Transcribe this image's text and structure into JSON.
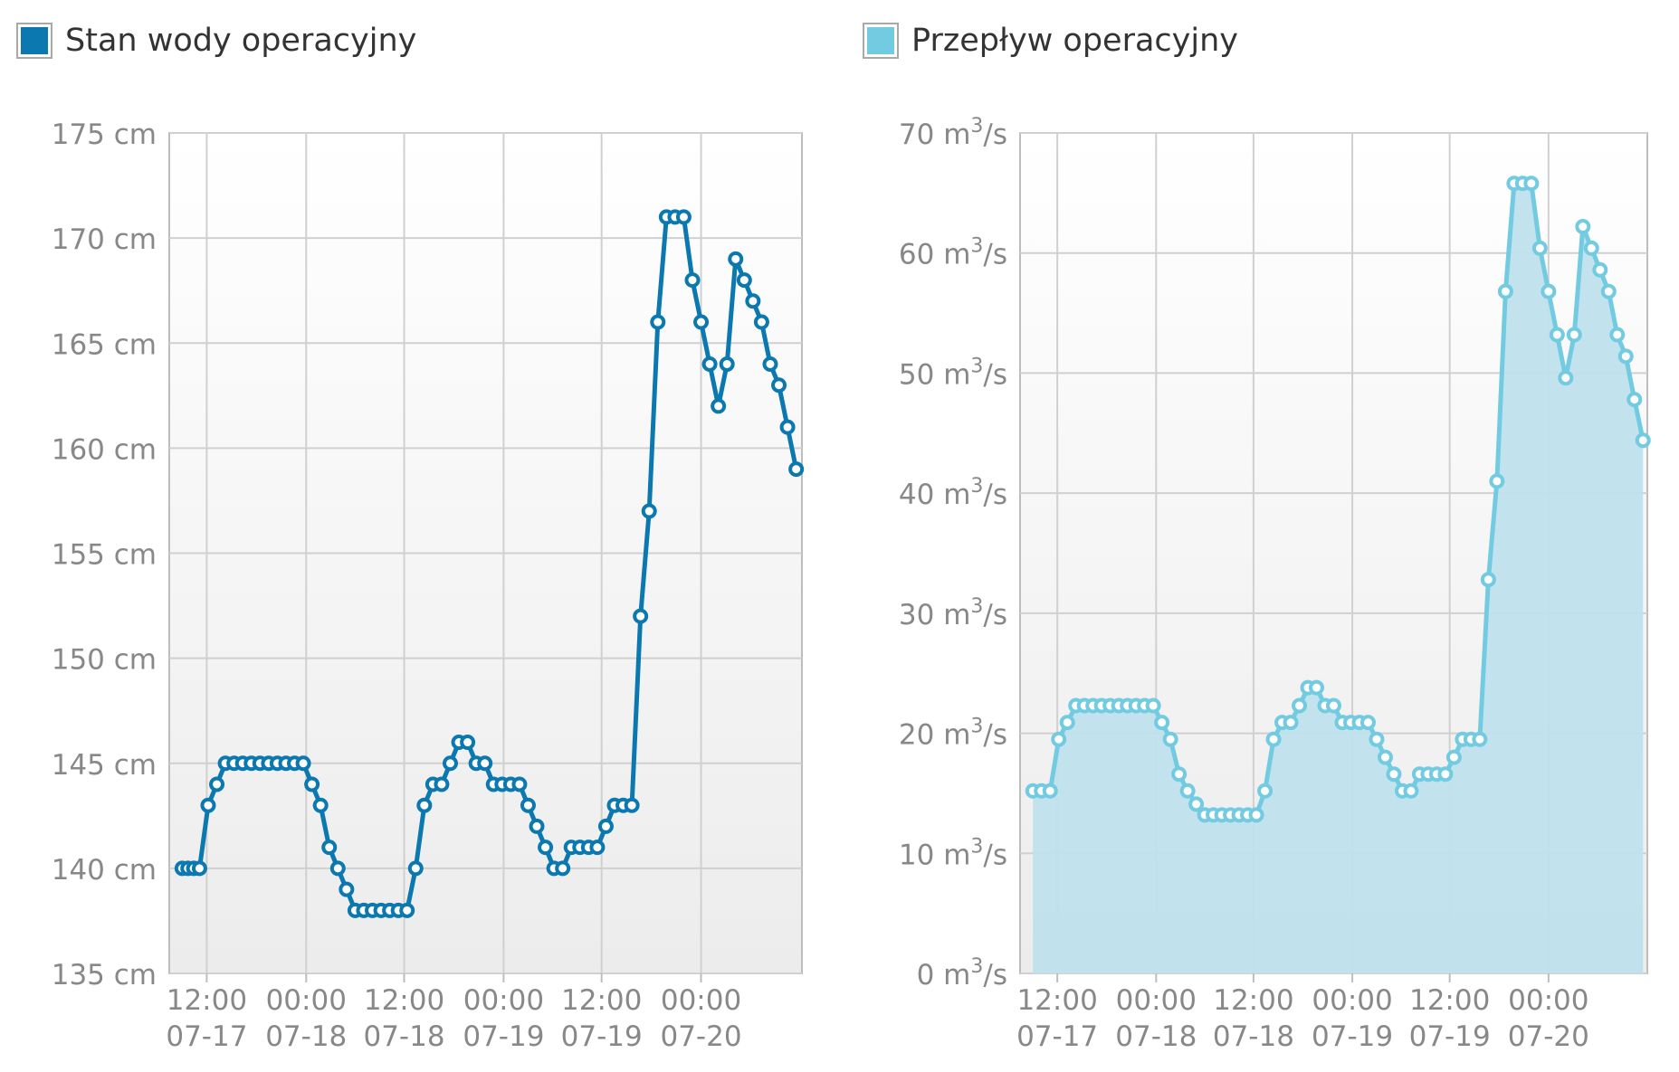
{
  "chart_data": [
    {
      "type": "line",
      "series": [
        {
          "name": "Stan wody operacyjny",
          "color": "#0b78b0",
          "values": [
            [
              0.15,
              140
            ],
            [
              0.35,
              140
            ],
            [
              0.55,
              140
            ],
            [
              0.75,
              140
            ],
            [
              1.05,
              143
            ],
            [
              1.35,
              144
            ],
            [
              1.65,
              145
            ],
            [
              1.95,
              145
            ],
            [
              2.25,
              145
            ],
            [
              2.55,
              145
            ],
            [
              2.85,
              145
            ],
            [
              3.15,
              145
            ],
            [
              3.45,
              145
            ],
            [
              3.75,
              145
            ],
            [
              4.05,
              145
            ],
            [
              4.35,
              145
            ],
            [
              4.65,
              144
            ],
            [
              4.95,
              143
            ],
            [
              5.25,
              141
            ],
            [
              5.55,
              140
            ],
            [
              5.85,
              139
            ],
            [
              6.15,
              138
            ],
            [
              6.45,
              138
            ],
            [
              6.75,
              138
            ],
            [
              7.05,
              138
            ],
            [
              7.35,
              138
            ],
            [
              7.65,
              138
            ],
            [
              7.95,
              138
            ],
            [
              8.25,
              140
            ],
            [
              8.55,
              143
            ],
            [
              8.85,
              144
            ],
            [
              9.15,
              144
            ],
            [
              9.45,
              145
            ],
            [
              9.75,
              146
            ],
            [
              10.05,
              146
            ],
            [
              10.35,
              145
            ],
            [
              10.65,
              145
            ],
            [
              10.95,
              144
            ],
            [
              11.25,
              144
            ],
            [
              11.55,
              144
            ],
            [
              11.85,
              144
            ],
            [
              12.15,
              143
            ],
            [
              12.45,
              142
            ],
            [
              12.75,
              141
            ],
            [
              13.05,
              140
            ],
            [
              13.35,
              140
            ],
            [
              13.65,
              141
            ],
            [
              13.95,
              141
            ],
            [
              14.25,
              141
            ],
            [
              14.55,
              141
            ],
            [
              14.85,
              142
            ],
            [
              15.15,
              143
            ],
            [
              15.45,
              143
            ],
            [
              15.75,
              143
            ],
            [
              16.05,
              152
            ],
            [
              16.35,
              157
            ],
            [
              16.65,
              166
            ],
            [
              16.95,
              171
            ],
            [
              17.25,
              171
            ],
            [
              17.55,
              171
            ],
            [
              17.85,
              168
            ],
            [
              18.15,
              166
            ],
            [
              18.45,
              164
            ],
            [
              18.75,
              162
            ],
            [
              19.05,
              164
            ],
            [
              19.35,
              169
            ],
            [
              19.65,
              168
            ],
            [
              19.95,
              167
            ],
            [
              20.25,
              166
            ],
            [
              20.55,
              164
            ],
            [
              20.85,
              163
            ],
            [
              21.15,
              161
            ],
            [
              21.45,
              159
            ]
          ]
        }
      ],
      "x_ticks": [
        {
          "label_top": "12:00",
          "label_bottom": "07-17"
        },
        {
          "label_top": "00:00",
          "label_bottom": "07-18"
        },
        {
          "label_top": "12:00",
          "label_bottom": "07-18"
        },
        {
          "label_top": "00:00",
          "label_bottom": "07-19"
        },
        {
          "label_top": "12:00",
          "label_bottom": "07-19"
        },
        {
          "label_top": "00:00",
          "label_bottom": "07-20"
        }
      ],
      "y_ticks": [
        "135 cm",
        "140 cm",
        "145 cm",
        "150 cm",
        "155 cm",
        "160 cm",
        "165 cm",
        "170 cm",
        "175 cm"
      ],
      "ylim": [
        135,
        175
      ],
      "y_step": 5,
      "grid": true
    },
    {
      "type": "area",
      "series": [
        {
          "name": "Przepływ operacyjny",
          "color": "#72cbe1",
          "fill": "#bfe2ec",
          "values": [
            [
              0.15,
              15.2
            ],
            [
              0.45,
              15.2
            ],
            [
              0.75,
              15.2
            ],
            [
              1.05,
              19.5
            ],
            [
              1.35,
              20.9
            ],
            [
              1.65,
              22.3
            ],
            [
              1.95,
              22.3
            ],
            [
              2.25,
              22.3
            ],
            [
              2.55,
              22.3
            ],
            [
              2.85,
              22.3
            ],
            [
              3.15,
              22.3
            ],
            [
              3.45,
              22.3
            ],
            [
              3.75,
              22.3
            ],
            [
              4.05,
              22.3
            ],
            [
              4.35,
              22.3
            ],
            [
              4.65,
              20.9
            ],
            [
              4.95,
              19.5
            ],
            [
              5.25,
              16.6
            ],
            [
              5.55,
              15.2
            ],
            [
              5.85,
              14.1
            ],
            [
              6.15,
              13.2
            ],
            [
              6.45,
              13.2
            ],
            [
              6.75,
              13.2
            ],
            [
              7.05,
              13.2
            ],
            [
              7.35,
              13.2
            ],
            [
              7.65,
              13.2
            ],
            [
              7.95,
              13.2
            ],
            [
              8.25,
              15.2
            ],
            [
              8.55,
              19.5
            ],
            [
              8.85,
              20.9
            ],
            [
              9.15,
              20.9
            ],
            [
              9.45,
              22.3
            ],
            [
              9.75,
              23.8
            ],
            [
              10.05,
              23.8
            ],
            [
              10.35,
              22.3
            ],
            [
              10.65,
              22.3
            ],
            [
              10.95,
              20.9
            ],
            [
              11.25,
              20.9
            ],
            [
              11.55,
              20.9
            ],
            [
              11.85,
              20.9
            ],
            [
              12.15,
              19.5
            ],
            [
              12.45,
              18.0
            ],
            [
              12.75,
              16.6
            ],
            [
              13.05,
              15.2
            ],
            [
              13.35,
              15.2
            ],
            [
              13.65,
              16.6
            ],
            [
              13.95,
              16.6
            ],
            [
              14.25,
              16.6
            ],
            [
              14.55,
              16.6
            ],
            [
              14.85,
              18.0
            ],
            [
              15.15,
              19.5
            ],
            [
              15.45,
              19.5
            ],
            [
              15.75,
              19.5
            ],
            [
              16.05,
              32.8
            ],
            [
              16.35,
              41.0
            ],
            [
              16.65,
              56.8
            ],
            [
              16.95,
              65.8
            ],
            [
              17.25,
              65.8
            ],
            [
              17.55,
              65.8
            ],
            [
              17.85,
              60.4
            ],
            [
              18.15,
              56.8
            ],
            [
              18.45,
              53.2
            ],
            [
              18.75,
              49.6
            ],
            [
              19.05,
              53.2
            ],
            [
              19.35,
              62.2
            ],
            [
              19.65,
              60.4
            ],
            [
              19.95,
              58.6
            ],
            [
              20.25,
              56.8
            ],
            [
              20.55,
              53.2
            ],
            [
              20.85,
              51.4
            ],
            [
              21.15,
              47.8
            ],
            [
              21.45,
              44.4
            ]
          ]
        }
      ],
      "x_ticks": [
        {
          "label_top": "12:00",
          "label_bottom": "07-17"
        },
        {
          "label_top": "00:00",
          "label_bottom": "07-18"
        },
        {
          "label_top": "12:00",
          "label_bottom": "07-18"
        },
        {
          "label_top": "00:00",
          "label_bottom": "07-19"
        },
        {
          "label_top": "12:00",
          "label_bottom": "07-19"
        },
        {
          "label_top": "00:00",
          "label_bottom": "07-20"
        }
      ],
      "y_ticks": [
        "0",
        "10",
        "20",
        "30",
        "40",
        "50",
        "60",
        "70"
      ],
      "y_unit_base": "m",
      "y_unit_sup": "3",
      "y_unit_tail": "/s",
      "ylim": [
        0,
        70
      ],
      "y_step": 10,
      "grid": true
    }
  ]
}
